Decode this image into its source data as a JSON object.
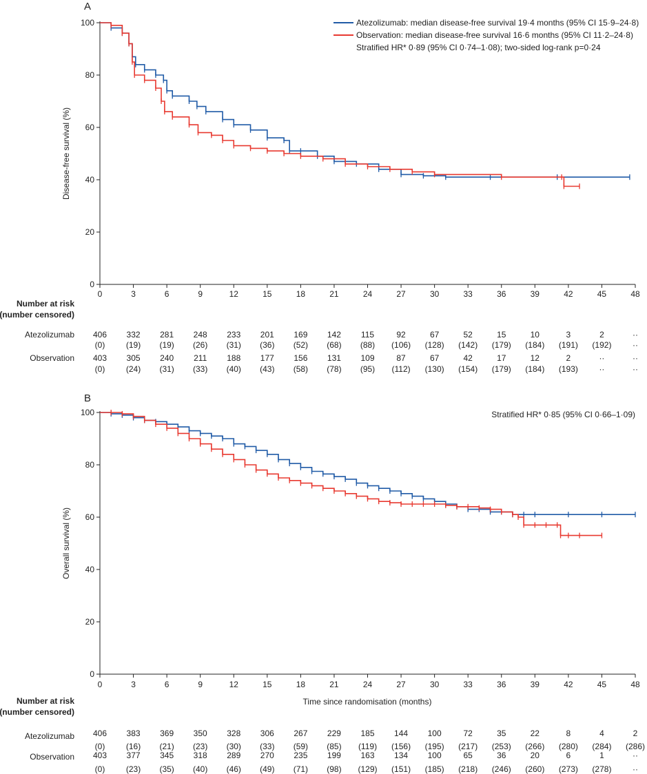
{
  "chart_data": [
    {
      "type": "line",
      "panel": "A",
      "ylabel": "Disease-free survival (%)",
      "xlabel": "",
      "xlim": [
        0,
        48
      ],
      "ylim": [
        0,
        100
      ],
      "x_ticks": [
        "0",
        "3",
        "6",
        "9",
        "12",
        "15",
        "18",
        "21",
        "24",
        "27",
        "30",
        "33",
        "36",
        "39",
        "42",
        "45",
        "48"
      ],
      "y_ticks": [
        "0",
        "20",
        "40",
        "60",
        "80",
        "100"
      ],
      "legend": [
        {
          "label": "Atezolizumab: median disease-free survival 19·4 months (95% CI 15·9–24·8)",
          "color": "#1f5aa6"
        },
        {
          "label": "Observation: median disease-free survival 16·6 months (95% CI 11·2–24·8)",
          "color": "#e8382f"
        }
      ],
      "annotation": "Stratified HR* 0·89 (95% CI 0·74–1·08); two-sided log-rank p=0·24",
      "series": [
        {
          "name": "Atezolizumab",
          "color": "#1f5aa6",
          "x": [
            0,
            1,
            2,
            2.6,
            2.9,
            3.2,
            4,
            5,
            5.7,
            6,
            6.5,
            8,
            8.7,
            9.5,
            11,
            12,
            13.5,
            15,
            16.5,
            17,
            18,
            19.5,
            21,
            23,
            25,
            27,
            29,
            31,
            35,
            41,
            47.5
          ],
          "y": [
            100,
            98,
            96,
            92,
            87,
            84,
            82,
            80,
            78,
            74,
            72,
            70,
            68,
            66,
            63,
            61,
            59,
            56,
            55,
            51,
            51,
            49,
            47,
            46,
            44,
            42,
            41.5,
            41,
            41,
            41,
            41
          ]
        },
        {
          "name": "Observation",
          "color": "#e8382f",
          "x": [
            0,
            1,
            2,
            2.6,
            2.9,
            3.1,
            4,
            5,
            5.5,
            5.8,
            6.5,
            8,
            8.8,
            10,
            11,
            12,
            13.5,
            15,
            16.5,
            18,
            20,
            22,
            24,
            26,
            28,
            30,
            36,
            41.4,
            41.6,
            43
          ],
          "y": [
            100,
            99,
            96,
            92,
            85,
            80,
            78,
            75,
            70,
            66,
            64,
            61,
            58,
            57,
            55,
            53,
            52,
            51,
            50,
            49,
            48,
            46,
            45,
            44,
            43,
            42,
            41,
            41,
            37.5,
            37.5
          ]
        }
      ],
      "number_at_risk": {
        "heading_line1": "Number at risk",
        "heading_line2": "(number censored)",
        "rows": [
          {
            "label": "Atezolizumab",
            "at_risk": [
              "406",
              "332",
              "281",
              "248",
              "233",
              "201",
              "169",
              "142",
              "115",
              "92",
              "67",
              "52",
              "15",
              "10",
              "3",
              "2",
              "··"
            ],
            "censored": [
              "(0)",
              "(19)",
              "(19)",
              "(26)",
              "(31)",
              "(36)",
              "(52)",
              "(68)",
              "(88)",
              "(106)",
              "(128)",
              "(142)",
              "(179)",
              "(184)",
              "(191)",
              "(192)",
              "··"
            ]
          },
          {
            "label": "Observation",
            "at_risk": [
              "403",
              "305",
              "240",
              "211",
              "188",
              "177",
              "156",
              "131",
              "109",
              "87",
              "67",
              "42",
              "17",
              "12",
              "2",
              "··",
              "··"
            ],
            "censored": [
              "(0)",
              "(24)",
              "(31)",
              "(33)",
              "(40)",
              "(43)",
              "(58)",
              "(78)",
              "(95)",
              "(112)",
              "(130)",
              "(154)",
              "(179)",
              "(184)",
              "(193)",
              "··",
              "··"
            ]
          }
        ]
      }
    },
    {
      "type": "line",
      "panel": "B",
      "ylabel": "Overall survival (%)",
      "xlabel": "Time since randomisation (months)",
      "xlim": [
        0,
        48
      ],
      "ylim": [
        0,
        100
      ],
      "x_ticks": [
        "0",
        "3",
        "6",
        "9",
        "12",
        "15",
        "18",
        "21",
        "24",
        "27",
        "30",
        "33",
        "36",
        "39",
        "42",
        "45",
        "48"
      ],
      "y_ticks": [
        "0",
        "20",
        "40",
        "60",
        "80",
        "100"
      ],
      "annotation": "Stratified HR* 0·85 (95% CI 0·66–1·09)",
      "series": [
        {
          "name": "Atezolizumab",
          "color": "#1f5aa6",
          "x": [
            0,
            1,
            2,
            3,
            4,
            5,
            6,
            7,
            8,
            9,
            10,
            11,
            12,
            13,
            14,
            15,
            16,
            17,
            18,
            19,
            20,
            21,
            22,
            23,
            24,
            25,
            26,
            27,
            28,
            29,
            30,
            31,
            32,
            33,
            34,
            35,
            36,
            37,
            38,
            39,
            42,
            45,
            48
          ],
          "y": [
            100,
            99.5,
            99,
            98,
            97,
            96.5,
            95.5,
            94.5,
            93,
            92,
            91,
            90,
            88,
            87,
            85.5,
            84,
            82,
            80.5,
            79,
            77.5,
            76.5,
            75.5,
            74.5,
            73,
            72,
            71,
            70,
            69,
            68,
            67,
            66,
            65,
            64,
            63,
            63,
            62,
            62,
            61,
            61,
            61,
            61,
            61,
            61
          ]
        },
        {
          "name": "Observation",
          "color": "#e8382f",
          "x": [
            0,
            1,
            2,
            3,
            4,
            5,
            6,
            7,
            8,
            9,
            10,
            11,
            12,
            13,
            14,
            15,
            16,
            17,
            18,
            19,
            20,
            21,
            22,
            23,
            24,
            25,
            26,
            27,
            28,
            29,
            30,
            31,
            32,
            33,
            34,
            35,
            36,
            37,
            37.5,
            38,
            39,
            40,
            41,
            41.3,
            42,
            43,
            45
          ],
          "y": [
            100,
            100,
            99.5,
            98.5,
            97,
            95.5,
            94,
            92,
            90,
            88,
            86,
            84,
            82,
            80,
            78,
            76.5,
            75,
            74,
            73,
            72,
            71,
            70,
            69,
            68,
            67,
            66,
            65.5,
            65,
            65,
            65,
            65,
            64.5,
            64,
            64,
            63.5,
            63,
            62,
            61,
            60,
            57,
            57,
            57,
            57,
            53,
            53,
            53,
            53
          ]
        }
      ],
      "number_at_risk": {
        "heading_line1": "Number at risk",
        "heading_line2": "(number censored)",
        "rows": [
          {
            "label": "Atezolizumab",
            "at_risk": [
              "406",
              "383",
              "369",
              "350",
              "328",
              "306",
              "267",
              "229",
              "185",
              "144",
              "100",
              "72",
              "35",
              "22",
              "8",
              "4",
              "2"
            ],
            "censored": [
              "(0)",
              "(16)",
              "(21)",
              "(23)",
              "(30)",
              "(33)",
              "(59)",
              "(85)",
              "(119)",
              "(156)",
              "(195)",
              "(217)",
              "(253)",
              "(266)",
              "(280)",
              "(284)",
              "(286)"
            ]
          },
          {
            "label": "Observation",
            "at_risk": [
              "403",
              "377",
              "345",
              "318",
              "289",
              "270",
              "235",
              "199",
              "163",
              "134",
              "100",
              "65",
              "36",
              "20",
              "6",
              "1",
              "··"
            ],
            "censored": [
              "(0)",
              "(23)",
              "(35)",
              "(40)",
              "(46)",
              "(49)",
              "(71)",
              "(98)",
              "(129)",
              "(151)",
              "(185)",
              "(218)",
              "(246)",
              "(260)",
              "(273)",
              "(278)",
              "··"
            ]
          }
        ]
      }
    }
  ]
}
